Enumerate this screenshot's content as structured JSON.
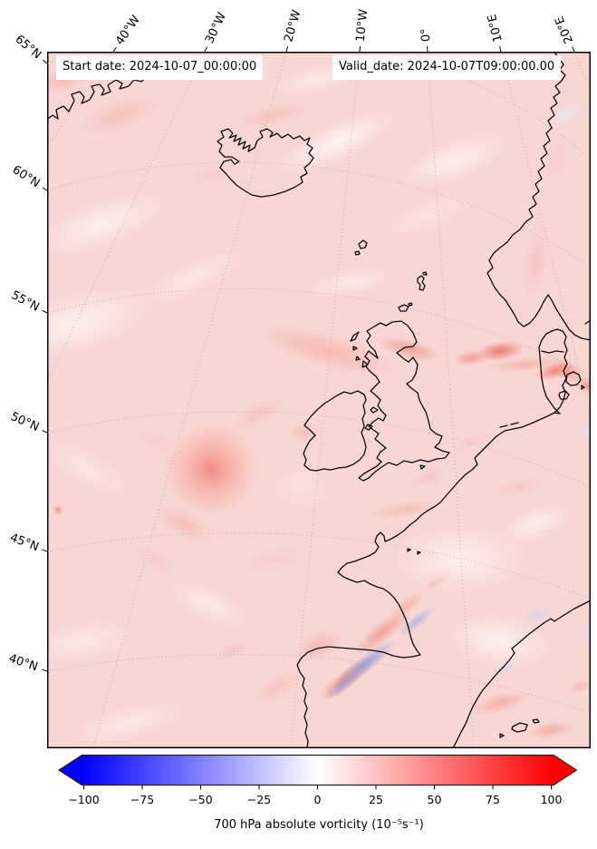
{
  "header": {
    "start_date": "Start date: 2024-10-07_00:00:00",
    "valid_date": "Valid_date: 2024-10-07T09:00:00.00"
  },
  "axes": {
    "lon_labels": [
      "40°W",
      "30°W",
      "20°W",
      "10°W",
      "0°",
      "10°E",
      "20°E"
    ],
    "lat_labels": [
      "65°N",
      "60°N",
      "55°N",
      "50°N",
      "45°N",
      "40°N"
    ]
  },
  "colorbar": {
    "tick_labels": [
      "−100",
      "−75",
      "−50",
      "−25",
      "0",
      "25",
      "50",
      "75",
      "100"
    ],
    "min_color": "#0000ff",
    "mid_color": "#ffffff",
    "max_color": "#ff0000"
  },
  "caption": {
    "text": "700 hPa absolute vorticity (10⁻⁵s⁻¹)"
  },
  "chart_data": {
    "type": "heatmap",
    "subtype": "filled-contour geographic map",
    "variable": "700 hPa absolute vorticity",
    "units": "10⁻⁵ s⁻¹",
    "colormap": "blue-white-red (bwr), extended arrows both ends",
    "colorbar_range": [
      -100,
      100
    ],
    "colorbar_ticks": [
      -100,
      -75,
      -50,
      -25,
      0,
      25,
      50,
      75,
      100
    ],
    "map_region": {
      "lat_ticks_deg_n": [
        40,
        45,
        50,
        55,
        60,
        65
      ],
      "lon_ticks_deg_e": [
        -40,
        -30,
        -20,
        -10,
        0,
        10,
        20
      ],
      "visible_lands": [
        "Greenland (SE edge)",
        "Iceland",
        "Faroe Islands",
        "Shetland",
        "Orkney",
        "Great Britain",
        "Ireland",
        "Norway",
        "Sweden (W coast)",
        "Denmark",
        "Low Countries",
        "France",
        "Iberian Peninsula",
        "Balearic Islands"
      ]
    },
    "field_summary": {
      "background": "weak positive vorticity (about +5 to +15) over most of the domain",
      "features": [
        {
          "name": "cyclonic vortex with concentric/spiral banding",
          "approx_lat": 48.5,
          "approx_lon": -31,
          "est_value": 35
        },
        {
          "name": "elongated vorticity maxima over the North Sea",
          "approx_lat": 57,
          "approx_lon": 1,
          "est_value": 60
        },
        {
          "name": "maximum near Skagerrak / Denmark",
          "approx_lat": 56.5,
          "approx_lon": 9,
          "est_value": 50
        },
        {
          "name": "shear band across northern Scotland",
          "approx_lat": 58,
          "approx_lon": -5,
          "est_value": 40
        },
        {
          "name": "negative (anticyclonic) streak over Bay of Biscay / N Spain",
          "approx_lat": 44.5,
          "approx_lon": -4,
          "est_value": -45
        },
        {
          "name": "positive streaks flanking the Biscay negative streak",
          "approx_lat": 45,
          "approx_lon": -3,
          "est_value": 45
        }
      ]
    }
  }
}
